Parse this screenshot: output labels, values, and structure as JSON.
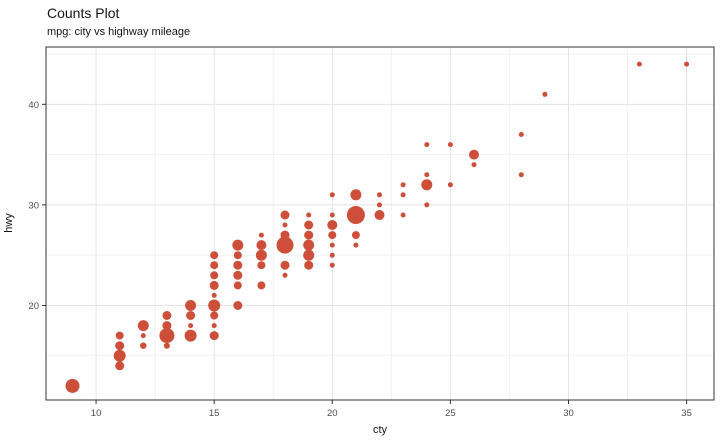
{
  "header": {
    "title": "Counts Plot",
    "subtitle": "mpg: city vs highway mileage"
  },
  "chart_data": {
    "type": "scatter",
    "variant": "count-bubble",
    "title": "Counts Plot",
    "subtitle": "mpg: city vs highway mileage",
    "xlabel": "cty",
    "ylabel": "hwy",
    "xlim": [
      7.88,
      36.16
    ],
    "ylim": [
      10.6,
      45.7
    ],
    "x_major_ticks": [
      10,
      15,
      20,
      25,
      30,
      35
    ],
    "y_major_ticks": [
      20,
      30,
      40
    ],
    "x_minor_gridlines": [
      12.5,
      17.5,
      22.5,
      27.5,
      32.5
    ],
    "y_minor_gridlines": [
      15,
      25,
      35,
      45
    ],
    "grid": true,
    "legend": "none",
    "size_encoding": "point radius encodes count of overlapping observations",
    "point_format": [
      "cty",
      "hwy",
      "radius_px"
    ],
    "points": [
      [
        9,
        12,
        7
      ],
      [
        11,
        17,
        4
      ],
      [
        11,
        16,
        4.5
      ],
      [
        11,
        15,
        6
      ],
      [
        11,
        14,
        4.5
      ],
      [
        12,
        18,
        5.5
      ],
      [
        12,
        17,
        2.5
      ],
      [
        12,
        16,
        3.2
      ],
      [
        13,
        19,
        4.5
      ],
      [
        13,
        18,
        4.5
      ],
      [
        13,
        17,
        7.5
      ],
      [
        13,
        16,
        3
      ],
      [
        14,
        20,
        5.5
      ],
      [
        14,
        19,
        4.5
      ],
      [
        14,
        18,
        2.5
      ],
      [
        14,
        17,
        6
      ],
      [
        15,
        25,
        4
      ],
      [
        15,
        24,
        4
      ],
      [
        15,
        23,
        4
      ],
      [
        15,
        22,
        4.5
      ],
      [
        15,
        21,
        2.5
      ],
      [
        15,
        20,
        6
      ],
      [
        15,
        19,
        4
      ],
      [
        15,
        18,
        2.5
      ],
      [
        15,
        17,
        4.5
      ],
      [
        16,
        26,
        5.5
      ],
      [
        16,
        25,
        4
      ],
      [
        16,
        24,
        4.5
      ],
      [
        16,
        23,
        4.5
      ],
      [
        16,
        22,
        4
      ],
      [
        16,
        20,
        4.5
      ],
      [
        17,
        27,
        2.5
      ],
      [
        17,
        26,
        5
      ],
      [
        17,
        25,
        5.5
      ],
      [
        17,
        24,
        4
      ],
      [
        17,
        22,
        4
      ],
      [
        18,
        29,
        4.5
      ],
      [
        18,
        28,
        2.5
      ],
      [
        18,
        27,
        4.5
      ],
      [
        18,
        26,
        8.5
      ],
      [
        18,
        24,
        4.5
      ],
      [
        18,
        23,
        2.5
      ],
      [
        19,
        29,
        2.5
      ],
      [
        19,
        28,
        4.5
      ],
      [
        19,
        27,
        4.5
      ],
      [
        19,
        26,
        5.5
      ],
      [
        19,
        25,
        5.5
      ],
      [
        19,
        24,
        4.5
      ],
      [
        20,
        31,
        2.5
      ],
      [
        20,
        29,
        2.5
      ],
      [
        20,
        28,
        5
      ],
      [
        20,
        27,
        4
      ],
      [
        20,
        26,
        2.5
      ],
      [
        20,
        25,
        2.5
      ],
      [
        20,
        24,
        2.5
      ],
      [
        21,
        31,
        5.5
      ],
      [
        21,
        29,
        9
      ],
      [
        21,
        27,
        4
      ],
      [
        21,
        26,
        2.5
      ],
      [
        22,
        31,
        2.5
      ],
      [
        22,
        30,
        2.5
      ],
      [
        22,
        29,
        5
      ],
      [
        23,
        32,
        2.5
      ],
      [
        23,
        31,
        2.5
      ],
      [
        23,
        29,
        2.5
      ],
      [
        24,
        36,
        2.5
      ],
      [
        24,
        33,
        2.5
      ],
      [
        24,
        32,
        5.5
      ],
      [
        24,
        30,
        2.5
      ],
      [
        25,
        36,
        2.5
      ],
      [
        25,
        32,
        2.5
      ],
      [
        26,
        35,
        5
      ],
      [
        26,
        34,
        2.5
      ],
      [
        28,
        37,
        2.5
      ],
      [
        28,
        33,
        2.5
      ],
      [
        29,
        41,
        2.5
      ],
      [
        33,
        44,
        2.5
      ],
      [
        35,
        44,
        2.5
      ]
    ],
    "colors": {
      "point": "#CD4F39",
      "grid_major": "#E4E4E4",
      "grid_minor": "#F1F1F1",
      "panel_border": "#333333",
      "tick": "#333333",
      "tick_label": "#4D4D4D",
      "text": "#141414",
      "panel_background": "#FFFFFF"
    }
  }
}
